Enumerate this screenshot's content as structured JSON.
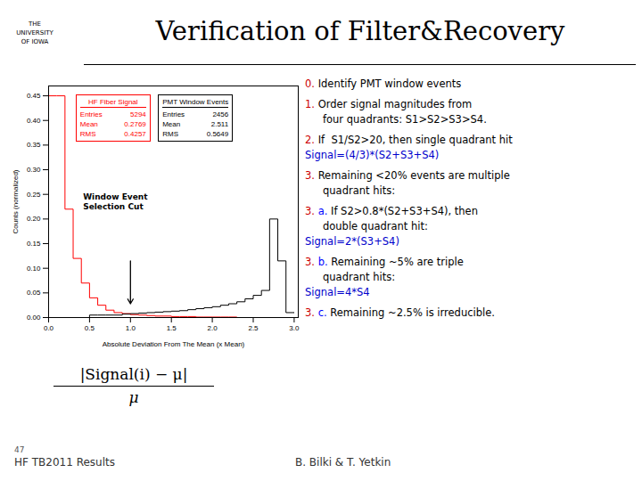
{
  "chart_data": {
    "type": "histogram",
    "title": "Verification of Filter&Recovery",
    "xlabel": "Absolute Deviation From The Mean (x Mean)",
    "ylabel": "Counts (normalized)",
    "bins": [
      0.0,
      0.1,
      0.2,
      0.3,
      0.4,
      0.5,
      0.6,
      0.7,
      0.8,
      0.9,
      1.0,
      1.1,
      1.2,
      1.3,
      1.4,
      1.5,
      1.6,
      1.7,
      1.8,
      1.9,
      2.0,
      2.1,
      2.2,
      2.3,
      2.4,
      2.5,
      2.6,
      2.7,
      2.8,
      2.9,
      3.0
    ],
    "series": [
      {
        "name": "HF Fiber Signal",
        "color": "red",
        "values": [
          0.45,
          0.45,
          0.22,
          0.12,
          0.07,
          0.04,
          0.025,
          0.015,
          0.01,
          0.008,
          0.006,
          0.005,
          0.004,
          0.003,
          0.003,
          0.002,
          0.002,
          0.002,
          0.001,
          0.001,
          0.001,
          0.001,
          0.001,
          0.0,
          0.0,
          0.0,
          0.0,
          0.0,
          0.0,
          0.0
        ],
        "stats": [
          [
            "Entries",
            "5294"
          ],
          [
            "Mean",
            "0.2769"
          ],
          [
            "RMS",
            "0.4257"
          ]
        ]
      },
      {
        "name": "PMT Window Events",
        "color": "black",
        "values": [
          0.0,
          0.0,
          0.0,
          0.0,
          0.0,
          0.005,
          0.005,
          0.005,
          0.005,
          0.007,
          0.008,
          0.009,
          0.01,
          0.011,
          0.012,
          0.013,
          0.014,
          0.016,
          0.018,
          0.02,
          0.022,
          0.025,
          0.028,
          0.032,
          0.038,
          0.045,
          0.055,
          0.2,
          0.115,
          0.01
        ],
        "stats": [
          [
            "Entries",
            "2456"
          ],
          [
            "Mean",
            "2.511"
          ],
          [
            "RMS",
            "0.5649"
          ]
        ]
      }
    ],
    "xlim": [
      0,
      3.05
    ],
    "ylim": [
      0,
      0.47
    ],
    "xticks": [
      {
        "value": 0,
        "label": "0.0"
      },
      {
        "value": 0.5,
        "label": "0.5"
      },
      {
        "value": 1,
        "label": "1.0"
      },
      {
        "value": 1.5,
        "label": "1.5"
      },
      {
        "value": 2,
        "label": "2.0"
      },
      {
        "value": 2.5,
        "label": "2.5"
      },
      {
        "value": 3,
        "label": "3.0"
      }
    ],
    "yticks": [
      {
        "value": 0,
        "label": "0.00"
      },
      {
        "value": 0.05,
        "label": "0.05"
      },
      {
        "value": 0.1,
        "label": "0.10"
      },
      {
        "value": 0.15,
        "label": "0.15"
      },
      {
        "value": 0.2,
        "label": "0.20"
      },
      {
        "value": 0.25,
        "label": "0.25"
      },
      {
        "value": 0.3,
        "label": "0.30"
      },
      {
        "value": 0.35,
        "label": "0.35"
      },
      {
        "value": 0.4,
        "label": "0.40"
      },
      {
        "value": 0.45,
        "label": "0.45"
      }
    ],
    "grid": false,
    "annotations": [
      {
        "text": "Window Event\nSelection Cut",
        "x": 1.0,
        "y": 0.028,
        "y_from": 0.115
      }
    ],
    "logo_text": "THE\nUNIVERSITY\nOF IOWA",
    "steps": [
      {
        "marker": {
          "text": "0.",
          "color": "#cc0000"
        },
        "text": [
          " Identify PMT window events"
        ]
      },
      {
        "marker": {
          "text": "1.",
          "color": "#cc0000"
        },
        "text": [
          " Order signal magnitudes from",
          "four quadrants: S1>S2>S3>S4."
        ]
      },
      {
        "marker": {
          "text": "2.",
          "color": "#cc0000"
        },
        "text": [
          " If  S1/S2>20, then single quadrant hit"
        ],
        "formula": {
          "text": "Signal=(4/3)*(S2+S3+S4)",
          "color": "#0000cc"
        }
      },
      {
        "marker": {
          "text": "3.",
          "color": "#cc0000"
        },
        "text": [
          " Remaining <20% events are multiple",
          "quadrant hits:"
        ]
      },
      {
        "marker": {
          "text": "3.",
          "color": "#cc0000"
        },
        "sub": {
          "text": " a.",
          "color": "blue"
        },
        "text": [
          " If S2>0.8*(S2+S3+S4), then",
          "double quadrant hit:"
        ],
        "formula": {
          "text": "Signal=2*(S3+S4)",
          "color": "#0000cc"
        }
      },
      {
        "marker": {
          "text": "3.",
          "color": "#cc0000"
        },
        "sub": {
          "text": " b.",
          "color": "blue"
        },
        "text": [
          " Remaining ~5% are triple",
          "quadrant hits:"
        ],
        "formula": {
          "text": "Signal=4*S4",
          "color": "#0000cc"
        }
      },
      {
        "marker": {
          "text": "3.",
          "color": "#cc0000"
        },
        "sub": {
          "text": " c.",
          "color": "blue"
        },
        "text": [
          " Remaining ~2.5% is irreducible."
        ]
      }
    ],
    "formula": {
      "numerator": "|Signal(i) − μ|",
      "denominator": "μ"
    },
    "footer": {
      "page": "47",
      "left": "HF TB2011 Results",
      "right": "B. Bilki & T. Yetkin"
    }
  }
}
